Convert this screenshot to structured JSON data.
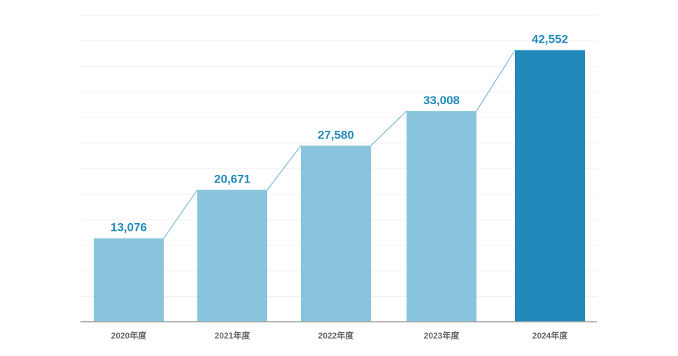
{
  "chart_data": {
    "type": "bar",
    "categories": [
      "2020年度",
      "2021年度",
      "2022年度",
      "2023年度",
      "2024年度"
    ],
    "values": [
      13076,
      20671,
      27580,
      33008,
      42552
    ],
    "value_labels": [
      "13,076",
      "20,671",
      "27,580",
      "33,008",
      "42,552"
    ],
    "ylim": [
      0,
      48000
    ],
    "grid": true,
    "connector_line": true,
    "colors": {
      "bar": "#88c5dd",
      "bar_highlight": "#228abb",
      "label": "#228abb",
      "connector": "#8cc6dc",
      "grid": "#ececec",
      "axis": "#9a9a9a"
    },
    "highlight_index": 4
  }
}
